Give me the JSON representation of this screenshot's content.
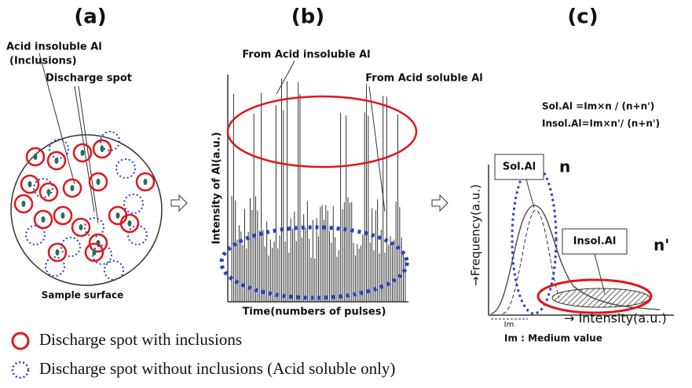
{
  "panels": {
    "a": {
      "label": "(a)",
      "insoluble": "Acid insoluble Al",
      "inclusions": "(Inclusions)",
      "discharge": "Discharge spot",
      "surface": "Sample surface"
    },
    "b": {
      "label": "(b)",
      "from_insoluble": "From Acid insoluble Al",
      "from_soluble": "From Acid soluble Al",
      "y_label": "Intensity of Al(a.u.)",
      "x_label": "Time(numbers of pulses)"
    },
    "c": {
      "label": "(c)",
      "formula_sol": "Sol.Al   =Im×n / (n+n')",
      "formula_insol": "Insol.Al=Im×n'/ (n+n')",
      "sol_box": "Sol.Al",
      "n": "n",
      "insol_box": "Insol.Al",
      "n_prime": "n'",
      "y_label": "→Frequency(a.u.)",
      "x_label": "→ Intensity(a.u.)",
      "im": "Im",
      "im_note": "Im : Medium value"
    }
  },
  "legend": {
    "with": "Discharge spot with inclusions",
    "without": "Discharge spot without inclusions (Acid soluble only)"
  }
}
